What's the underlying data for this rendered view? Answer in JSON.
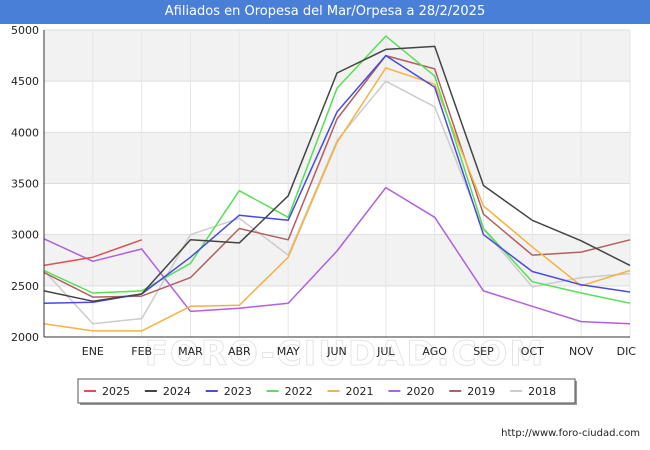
{
  "chart_data": {
    "type": "line",
    "title": "Afiliados en Oropesa del Mar/Orpesa a 28/2/2025",
    "watermark": "FORO-CIUDAD.COM",
    "source": "http://www.foro-ciudad.com",
    "x_labels": [
      "",
      "ENE",
      "FEB",
      "MAR",
      "ABR",
      "MAY",
      "JUN",
      "JUL",
      "AGO",
      "SEP",
      "OCT",
      "NOV",
      "DIC"
    ],
    "ylim": [
      2000,
      5000
    ],
    "yticks": [
      2000,
      2500,
      3000,
      3500,
      4000,
      4500,
      5000
    ],
    "grid": true,
    "legend_position": "bottom",
    "series": [
      {
        "name": "2025",
        "color": "#e05050",
        "values": [
          2700,
          2780,
          2950,
          null,
          null,
          null,
          null,
          null,
          null,
          null,
          null,
          null,
          null
        ]
      },
      {
        "name": "2024",
        "color": "#444444",
        "values": [
          2450,
          2350,
          2420,
          2950,
          2920,
          3380,
          4580,
          4810,
          4840,
          3480,
          3140,
          2940,
          2700
        ]
      },
      {
        "name": "2023",
        "color": "#4a4ae0",
        "values": [
          2330,
          2340,
          2420,
          2780,
          3190,
          3140,
          4200,
          4750,
          4440,
          3000,
          2640,
          2510,
          2440
        ]
      },
      {
        "name": "2022",
        "color": "#55e055",
        "values": [
          2650,
          2430,
          2450,
          2720,
          3430,
          3170,
          4430,
          4940,
          4550,
          3060,
          2540,
          2430,
          2330
        ]
      },
      {
        "name": "2021",
        "color": "#f5b240",
        "values": [
          2130,
          2060,
          2060,
          2300,
          2310,
          2780,
          3900,
          4630,
          4470,
          3280,
          2880,
          2500,
          2650
        ]
      },
      {
        "name": "2020",
        "color": "#b060e0",
        "values": [
          2960,
          2740,
          2860,
          2250,
          2280,
          2330,
          2840,
          3460,
          3170,
          2450,
          2300,
          2150,
          2130
        ]
      },
      {
        "name": "2019",
        "color": "#b06060",
        "values": [
          2630,
          2390,
          2400,
          2580,
          3060,
          2950,
          4130,
          4750,
          4620,
          3200,
          2800,
          2830,
          2950
        ]
      },
      {
        "name": "2018",
        "color": "#cccccc",
        "values": [
          2650,
          2130,
          2180,
          3000,
          3160,
          2800,
          3920,
          4500,
          4250,
          3050,
          2490,
          2580,
          2620
        ]
      }
    ]
  }
}
